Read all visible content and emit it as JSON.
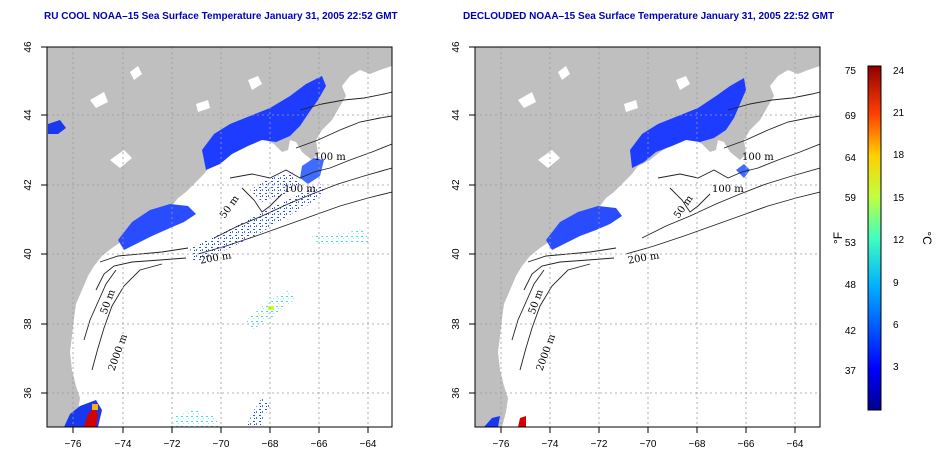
{
  "titles": {
    "left": "RU COOL NOAA–15 Sea Surface Temperature January 31, 2005 22:52 GMT",
    "right": "DECLOUDED NOAA–15 Sea Surface Temperature January 31, 2005 22:52 GMT"
  },
  "axes": {
    "lat_ticks": [
      "46",
      "44",
      "42",
      "40",
      "38",
      "36"
    ],
    "lon_ticks": [
      "−76",
      "−74",
      "−72",
      "−70",
      "−68",
      "−66",
      "−64"
    ]
  },
  "contour_labels": {
    "c100a": "100 m",
    "c100b": "100 m",
    "c50": "50 m",
    "c200": "200 m",
    "c50s": "50 m",
    "c2000": "2000 m"
  },
  "colorbar": {
    "fahrenheit": [
      "75",
      "69",
      "64",
      "59",
      "53",
      "48",
      "42",
      "37"
    ],
    "celsius": [
      "24",
      "21",
      "18",
      "15",
      "12",
      "9",
      "6",
      "3"
    ],
    "unit_f": "°F",
    "unit_c": "°C"
  },
  "colors": {
    "land": "#bfbfbf",
    "ocean_nodata": "#ffffff",
    "cold_water": "#1e3cff",
    "warm_accent": "#d40000"
  }
}
